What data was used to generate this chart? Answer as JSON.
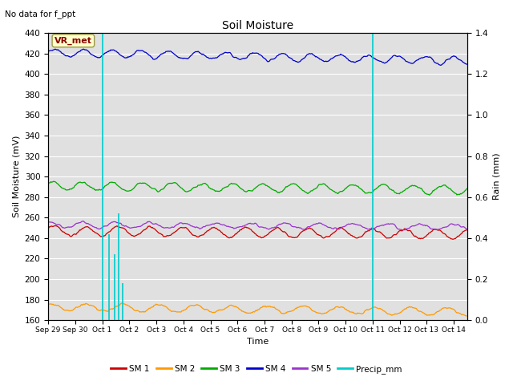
{
  "title": "Soil Moisture",
  "top_left_text": "No data for f_ppt",
  "ylabel_left": "Soil Moisture (mV)",
  "ylabel_right": "Rain (mm)",
  "xlabel": "Time",
  "annotation_box": "VR_met",
  "ylim_left": [
    160,
    440
  ],
  "ylim_right": [
    0.0,
    1.4
  ],
  "yticks_left": [
    160,
    180,
    200,
    220,
    240,
    260,
    280,
    300,
    320,
    340,
    360,
    380,
    400,
    420,
    440
  ],
  "yticks_right": [
    0.0,
    0.2,
    0.4,
    0.6,
    0.8,
    1.0,
    1.2,
    1.4
  ],
  "xlim": [
    0,
    15.5
  ],
  "xtick_labels": [
    "Sep 29",
    "Sep 30",
    "Oct 1",
    "Oct 2",
    "Oct 3",
    "Oct 4",
    "Oct 5",
    "Oct 6",
    "Oct 7",
    "Oct 8",
    "Oct 9",
    "Oct 10",
    "Oct 11",
    "Oct 12",
    "Oct 13",
    "Oct 14"
  ],
  "xtick_positions": [
    0,
    1,
    2,
    3,
    4,
    5,
    6,
    7,
    8,
    9,
    10,
    11,
    12,
    13,
    14,
    15
  ],
  "sm1_base": 247,
  "sm2_base": 173,
  "sm3_base": 291,
  "sm4_base": 421,
  "sm5_base": 253,
  "color_sm1": "#cc0000",
  "color_sm2": "#ff9900",
  "color_sm3": "#00aa00",
  "color_sm4": "#0000cc",
  "color_sm5": "#9933cc",
  "color_precip": "#00cccc",
  "color_background": "#e0e0e0",
  "precip_events_day": [
    2.0,
    2.25,
    2.45,
    2.6,
    2.75,
    12.0
  ],
  "precip_events_val": [
    1.4,
    0.42,
    0.32,
    0.52,
    0.18,
    1.4
  ],
  "legend_labels": [
    "SM 1",
    "SM 2",
    "SM 3",
    "SM 4",
    "SM 5",
    "Precip_mm"
  ],
  "legend_colors": [
    "#cc0000",
    "#ff9900",
    "#00aa00",
    "#0000cc",
    "#9933cc",
    "#00cccc"
  ]
}
